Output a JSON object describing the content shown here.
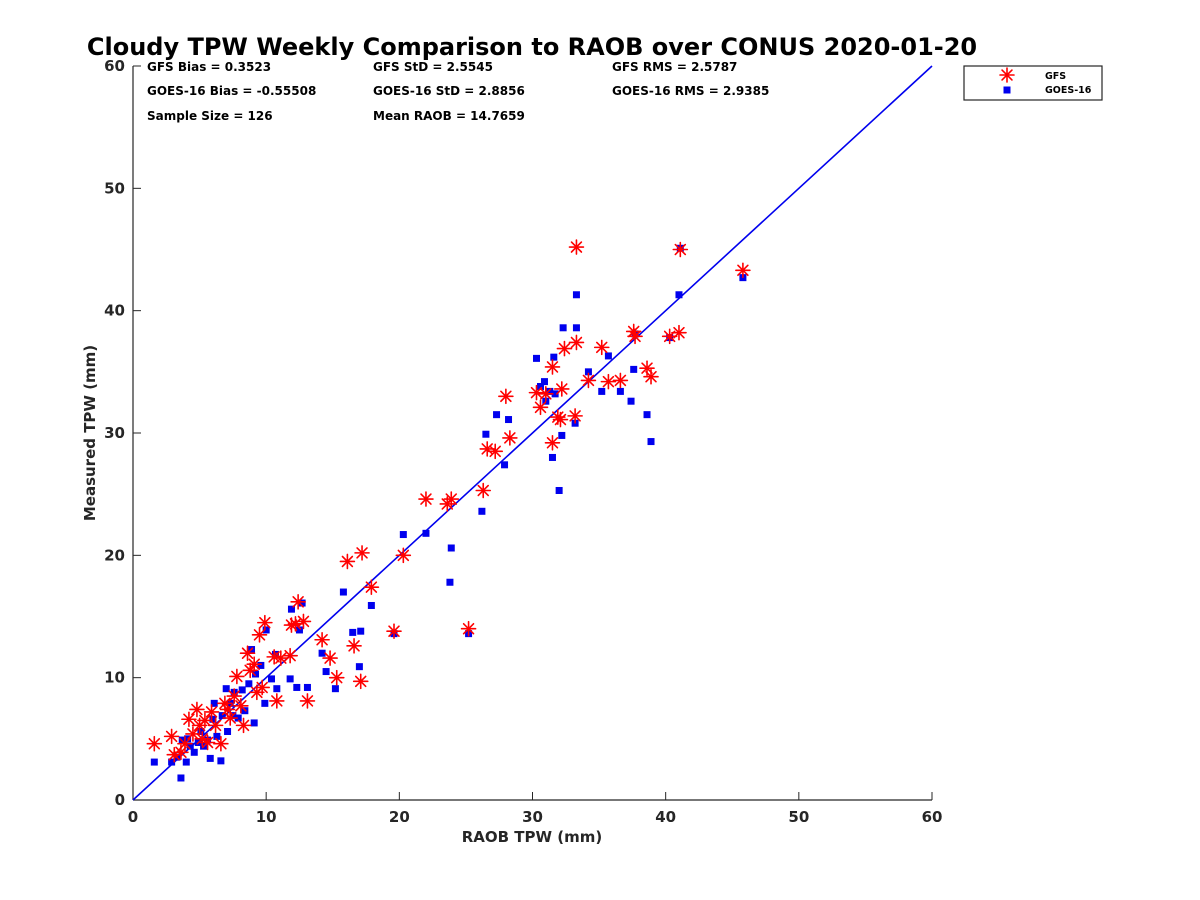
{
  "chart_data": {
    "type": "scatter",
    "title": "Cloudy TPW Weekly Comparison to RAOB over CONUS 2020-01-20",
    "xlabel": "RAOB TPW (mm)",
    "ylabel": "Measured TPW (mm)",
    "xlim": [
      0,
      60
    ],
    "ylim": [
      0,
      60
    ],
    "xticks": [
      0,
      10,
      20,
      30,
      40,
      50,
      60
    ],
    "yticks": [
      0,
      10,
      20,
      30,
      40,
      50,
      60
    ],
    "legend_position": "top-right outside",
    "reference_line": {
      "name": "1:1 line",
      "color": "#0000ee",
      "x": [
        0,
        60
      ],
      "y": [
        0,
        60
      ]
    },
    "stats": {
      "gfs_bias": "GFS Bias = 0.3523",
      "gfs_std": "GFS StD = 2.5545",
      "gfs_rms": "GFS RMS = 2.5787",
      "goes_bias": "GOES-16 Bias = -0.55508",
      "goes_std": "GOES-16 StD = 2.8856",
      "goes_rms": "GOES-16 RMS = 2.9385",
      "sample_size": "Sample Size = 126",
      "mean_raob": "Mean RAOB = 14.7659"
    },
    "series": [
      {
        "name": "GFS",
        "marker": "asterisk",
        "color": "#ff0000",
        "points": [
          [
            1.6,
            4.6
          ],
          [
            2.9,
            5.2
          ],
          [
            3.1,
            3.7
          ],
          [
            3.6,
            3.9
          ],
          [
            3.9,
            4.6
          ],
          [
            4.2,
            6.6
          ],
          [
            4.5,
            5.4
          ],
          [
            4.8,
            7.4
          ],
          [
            5.0,
            6.1
          ],
          [
            5.2,
            5.0
          ],
          [
            5.4,
            6.5
          ],
          [
            5.6,
            4.7
          ],
          [
            5.9,
            7.2
          ],
          [
            6.2,
            6.1
          ],
          [
            6.6,
            4.6
          ],
          [
            6.9,
            7.9
          ],
          [
            7.1,
            7.4
          ],
          [
            7.3,
            6.7
          ],
          [
            7.6,
            8.5
          ],
          [
            7.8,
            10.1
          ],
          [
            8.1,
            7.7
          ],
          [
            8.3,
            6.1
          ],
          [
            8.6,
            12.0
          ],
          [
            8.8,
            10.6
          ],
          [
            9.1,
            11.1
          ],
          [
            9.3,
            8.8
          ],
          [
            9.5,
            13.5
          ],
          [
            9.7,
            9.2
          ],
          [
            9.9,
            14.5
          ],
          [
            10.6,
            11.7
          ],
          [
            10.8,
            8.1
          ],
          [
            11.1,
            11.6
          ],
          [
            11.8,
            11.8
          ],
          [
            11.9,
            14.3
          ],
          [
            12.2,
            14.4
          ],
          [
            12.4,
            16.2
          ],
          [
            12.8,
            14.6
          ],
          [
            13.1,
            8.1
          ],
          [
            14.2,
            13.1
          ],
          [
            14.8,
            11.6
          ],
          [
            15.3,
            10.0
          ],
          [
            16.1,
            19.5
          ],
          [
            16.6,
            12.6
          ],
          [
            17.1,
            9.7
          ],
          [
            17.2,
            20.2
          ],
          [
            17.9,
            17.4
          ],
          [
            19.6,
            13.8
          ],
          [
            20.3,
            20.0
          ],
          [
            22.0,
            24.6
          ],
          [
            23.6,
            24.2
          ],
          [
            23.9,
            24.6
          ],
          [
            25.2,
            14.0
          ],
          [
            26.3,
            25.3
          ],
          [
            26.6,
            28.7
          ],
          [
            27.2,
            28.5
          ],
          [
            28.0,
            33.0
          ],
          [
            28.3,
            29.6
          ],
          [
            30.3,
            33.3
          ],
          [
            30.6,
            32.1
          ],
          [
            31.0,
            33.2
          ],
          [
            31.5,
            35.4
          ],
          [
            31.5,
            29.2
          ],
          [
            31.9,
            31.3
          ],
          [
            32.1,
            31.1
          ],
          [
            32.2,
            33.6
          ],
          [
            32.4,
            36.9
          ],
          [
            33.2,
            31.4
          ],
          [
            33.3,
            37.4
          ],
          [
            33.3,
            45.2
          ],
          [
            34.2,
            34.3
          ],
          [
            35.2,
            37.0
          ],
          [
            35.7,
            34.2
          ],
          [
            36.6,
            34.3
          ],
          [
            37.6,
            38.3
          ],
          [
            37.7,
            37.9
          ],
          [
            38.6,
            35.3
          ],
          [
            38.9,
            34.6
          ],
          [
            40.3,
            37.9
          ],
          [
            41.0,
            38.2
          ],
          [
            41.1,
            45.0
          ],
          [
            45.8,
            43.3
          ]
        ]
      },
      {
        "name": "GOES-16",
        "marker": "square",
        "color": "#0000ee",
        "points": [
          [
            1.6,
            3.1
          ],
          [
            2.9,
            3.1
          ],
          [
            3.3,
            3.5
          ],
          [
            3.6,
            1.8
          ],
          [
            3.7,
            4.9
          ],
          [
            4.0,
            3.1
          ],
          [
            4.1,
            5.0
          ],
          [
            4.3,
            4.4
          ],
          [
            4.6,
            3.9
          ],
          [
            4.9,
            4.7
          ],
          [
            5.1,
            5.6
          ],
          [
            5.3,
            4.4
          ],
          [
            5.6,
            4.9
          ],
          [
            5.8,
            3.4
          ],
          [
            6.0,
            6.6
          ],
          [
            6.1,
            7.9
          ],
          [
            6.3,
            5.2
          ],
          [
            6.6,
            3.2
          ],
          [
            6.7,
            6.9
          ],
          [
            7.0,
            9.1
          ],
          [
            7.1,
            5.6
          ],
          [
            7.3,
            7.9
          ],
          [
            7.5,
            6.9
          ],
          [
            7.6,
            8.8
          ],
          [
            7.9,
            6.7
          ],
          [
            8.2,
            9.0
          ],
          [
            8.4,
            7.3
          ],
          [
            8.7,
            9.5
          ],
          [
            8.9,
            12.3
          ],
          [
            9.1,
            6.3
          ],
          [
            9.2,
            10.3
          ],
          [
            9.6,
            11.0
          ],
          [
            9.9,
            7.9
          ],
          [
            10.0,
            13.9
          ],
          [
            10.4,
            9.9
          ],
          [
            10.7,
            11.9
          ],
          [
            10.8,
            9.1
          ],
          [
            11.8,
            9.9
          ],
          [
            11.9,
            15.6
          ],
          [
            12.3,
            9.2
          ],
          [
            12.5,
            13.9
          ],
          [
            12.7,
            16.1
          ],
          [
            13.1,
            9.2
          ],
          [
            14.2,
            12.0
          ],
          [
            14.5,
            10.5
          ],
          [
            15.2,
            9.1
          ],
          [
            15.8,
            17.0
          ],
          [
            16.5,
            13.7
          ],
          [
            17.0,
            10.9
          ],
          [
            17.1,
            13.8
          ],
          [
            17.9,
            15.9
          ],
          [
            19.6,
            13.6
          ],
          [
            20.3,
            21.7
          ],
          [
            22.0,
            21.8
          ],
          [
            23.8,
            17.8
          ],
          [
            23.9,
            20.6
          ],
          [
            25.2,
            13.6
          ],
          [
            26.2,
            23.6
          ],
          [
            26.5,
            29.9
          ],
          [
            27.3,
            31.5
          ],
          [
            27.9,
            27.4
          ],
          [
            28.2,
            31.1
          ],
          [
            30.3,
            36.1
          ],
          [
            30.6,
            33.8
          ],
          [
            30.9,
            34.2
          ],
          [
            31.0,
            32.6
          ],
          [
            31.3,
            33.4
          ],
          [
            31.5,
            28.0
          ],
          [
            31.6,
            36.2
          ],
          [
            31.7,
            33.2
          ],
          [
            32.0,
            25.3
          ],
          [
            32.2,
            29.8
          ],
          [
            32.3,
            38.6
          ],
          [
            33.2,
            30.8
          ],
          [
            33.3,
            38.6
          ],
          [
            33.3,
            41.3
          ],
          [
            34.2,
            35.0
          ],
          [
            35.2,
            33.4
          ],
          [
            35.7,
            36.3
          ],
          [
            36.6,
            33.4
          ],
          [
            37.4,
            32.6
          ],
          [
            37.6,
            35.2
          ],
          [
            37.7,
            38.1
          ],
          [
            38.6,
            31.5
          ],
          [
            38.9,
            29.3
          ],
          [
            40.3,
            37.8
          ],
          [
            41.0,
            41.3
          ],
          [
            41.1,
            45.1
          ],
          [
            45.8,
            42.7
          ]
        ]
      }
    ]
  }
}
